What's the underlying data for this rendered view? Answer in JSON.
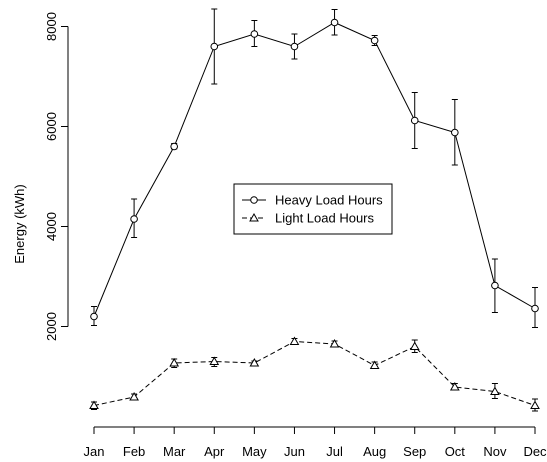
{
  "chart_data": {
    "type": "line",
    "categories": [
      "Jan",
      "Feb",
      "Mar",
      "Apr",
      "May",
      "Jun",
      "Jul",
      "Aug",
      "Sep",
      "Oct",
      "Nov",
      "Dec"
    ],
    "ylabel": "Energy (kWh)",
    "xlabel": "",
    "title": "",
    "ylim": [
      0,
      8000
    ],
    "yticks": [
      2000,
      4000,
      6000,
      8000
    ],
    "grid": false,
    "legend_position": "center",
    "series": [
      {
        "name": "Heavy Load Hours",
        "line_style": "solid",
        "marker": "circle",
        "values": [
          2200,
          4150,
          5600,
          7600,
          7850,
          7600,
          8080,
          7720,
          6120,
          5880,
          2820,
          2360
        ],
        "err_low": [
          2020,
          3780,
          5550,
          6850,
          7600,
          7350,
          7830,
          7620,
          5560,
          5230,
          2280,
          1980
        ],
        "err_high": [
          2400,
          4550,
          5660,
          8350,
          8120,
          7850,
          8340,
          7820,
          6680,
          6540,
          3350,
          2780
        ]
      },
      {
        "name": "Light Load Hours",
        "line_style": "dashed",
        "marker": "triangle",
        "values": [
          420,
          590,
          1270,
          1300,
          1270,
          1700,
          1650,
          1220,
          1600,
          790,
          700,
          420
        ],
        "err_low": [
          340,
          530,
          1180,
          1200,
          1230,
          1650,
          1590,
          1170,
          1480,
          740,
          560,
          310
        ],
        "err_high": [
          490,
          650,
          1350,
          1380,
          1310,
          1760,
          1710,
          1290,
          1730,
          860,
          860,
          550
        ]
      }
    ]
  }
}
